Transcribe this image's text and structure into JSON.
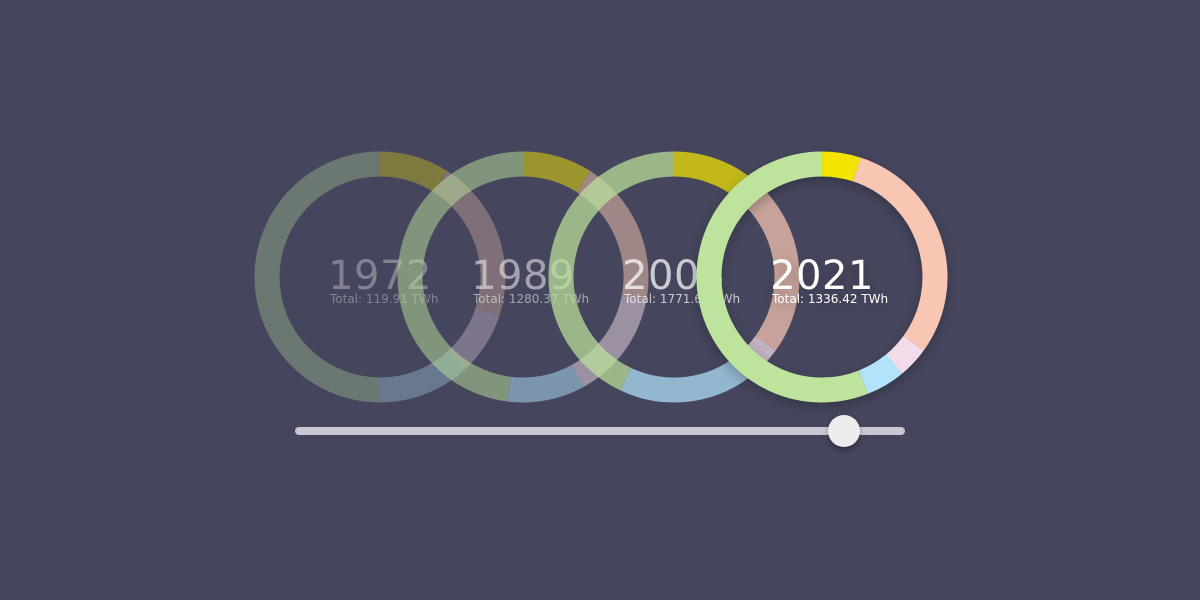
{
  "chart_data": {
    "type": "donut",
    "unit": "TWh",
    "total_prefix": "Total: ",
    "segment_colors": {
      "green": "#bde39c",
      "yellow": "#f3e401",
      "salmon": "#f8c6b2",
      "pink": "#f3dce9",
      "lightblue": "#b2e3fb"
    },
    "rings": [
      {
        "year": "1972",
        "total": "119.91",
        "opacity": 0.32,
        "segments": [
          {
            "color": "yellow",
            "fraction": 0.09
          },
          {
            "color": "salmon",
            "fraction": 0.21
          },
          {
            "color": "pink",
            "fraction": 0.08
          },
          {
            "color": "lightblue",
            "fraction": 0.12
          },
          {
            "color": "green",
            "fraction": 0.5
          }
        ]
      },
      {
        "year": "1989",
        "total": "1280.37",
        "opacity": 0.5,
        "segments": [
          {
            "color": "yellow",
            "fraction": 0.09
          },
          {
            "color": "salmon",
            "fraction": 0.19
          },
          {
            "color": "pink",
            "fraction": 0.14
          },
          {
            "color": "lightblue",
            "fraction": 0.1
          },
          {
            "color": "green",
            "fraction": 0.48
          }
        ]
      },
      {
        "year": "2005",
        "total": "1771.69",
        "opacity": 0.72,
        "segments": [
          {
            "color": "yellow",
            "fraction": 0.11
          },
          {
            "color": "salmon",
            "fraction": 0.24
          },
          {
            "color": "pink",
            "fraction": 0.04
          },
          {
            "color": "lightblue",
            "fraction": 0.18
          },
          {
            "color": "green",
            "fraction": 0.43
          }
        ]
      },
      {
        "year": "2021",
        "total": "1336.42",
        "opacity": 1,
        "segments": [
          {
            "color": "yellow",
            "fraction": 0.05
          },
          {
            "color": "salmon",
            "fraction": 0.3
          },
          {
            "color": "pink",
            "fraction": 0.04
          },
          {
            "color": "lightblue",
            "fraction": 0.05
          },
          {
            "color": "green",
            "fraction": 0.56
          }
        ]
      }
    ]
  },
  "slider": {
    "position_fraction": 0.9
  }
}
